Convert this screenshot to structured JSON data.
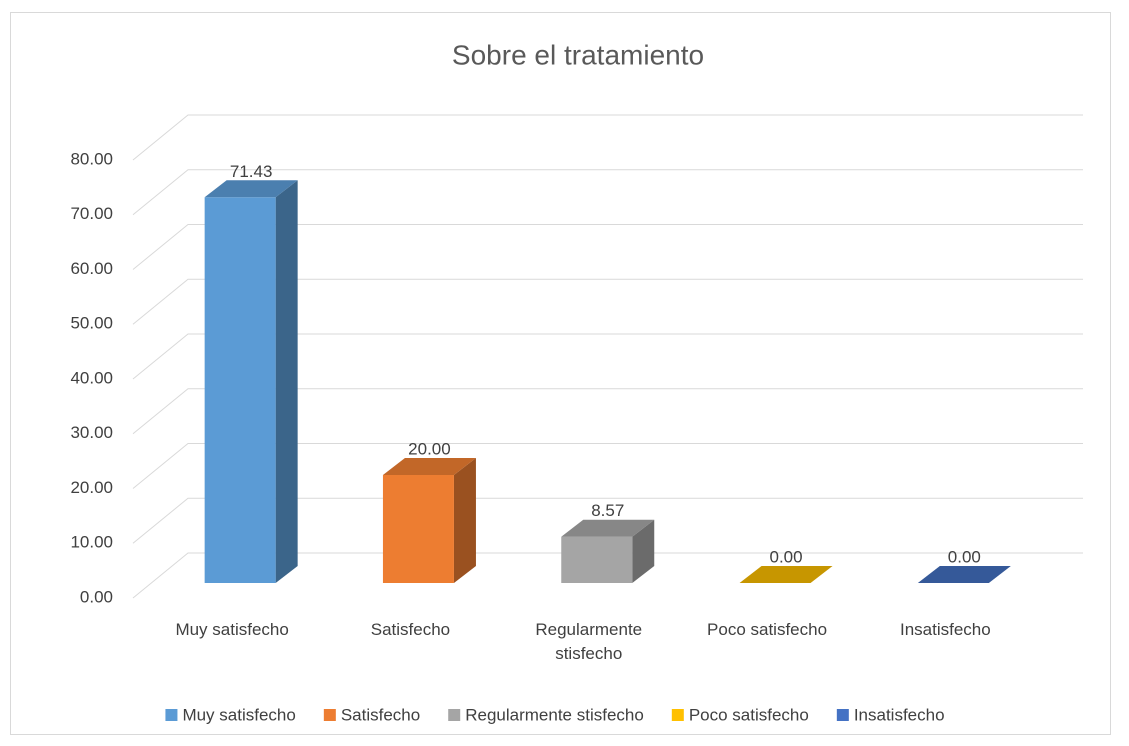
{
  "chart_data": {
    "type": "bar3d",
    "title": "Sobre el tratamiento",
    "categories": [
      "Muy satisfecho",
      "Satisfecho",
      "Regularmente stisfecho",
      "Poco satisfecho",
      "Insatisfecho"
    ],
    "series": [
      {
        "name": "Muy satisfecho",
        "color": "#5b9bd5"
      },
      {
        "name": "Satisfecho",
        "color": "#ed7d31"
      },
      {
        "name": "Regularmente stisfecho",
        "color": "#a5a5a5"
      },
      {
        "name": "Poco satisfecho",
        "color": "#ffc000"
      },
      {
        "name": "Insatisfecho",
        "color": "#4472c4"
      }
    ],
    "values": [
      71.43,
      20,
      8.57,
      0,
      0
    ],
    "value_labels": [
      "71.43",
      "20.00",
      "8.57",
      "0.00",
      "0.00"
    ],
    "ylim": [
      0,
      80
    ],
    "yticks": [
      {
        "value": 0,
        "label": "0.00"
      },
      {
        "value": 10,
        "label": "10.00"
      },
      {
        "value": 20,
        "label": "20.00"
      },
      {
        "value": 30,
        "label": "30.00"
      },
      {
        "value": 40,
        "label": "40.00"
      },
      {
        "value": 50,
        "label": "50.00"
      },
      {
        "value": 60,
        "label": "60.00"
      },
      {
        "value": 70,
        "label": "70.00"
      },
      {
        "value": 80,
        "label": "80.00"
      }
    ],
    "grid": true,
    "legend": "bottom"
  }
}
